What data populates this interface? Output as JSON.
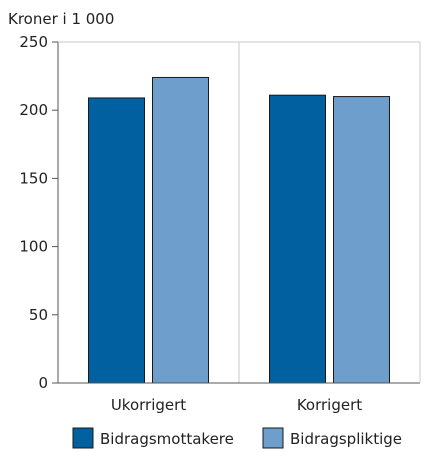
{
  "chart_data": {
    "type": "bar",
    "y_unit_label": "Kroner i 1 000",
    "categories": [
      "Ukorrigert",
      "Korrigert"
    ],
    "series": [
      {
        "name": "Bidragsmottakere",
        "color": "#0060a0",
        "values": [
          209,
          211
        ]
      },
      {
        "name": "Bidragspliktige",
        "color": "#6e9ecb",
        "values": [
          224,
          210
        ]
      }
    ],
    "ylim": [
      0,
      250
    ],
    "yticks": [
      0,
      50,
      100,
      150,
      200,
      250
    ],
    "grid": "vertical-only",
    "legend": "bottom"
  }
}
